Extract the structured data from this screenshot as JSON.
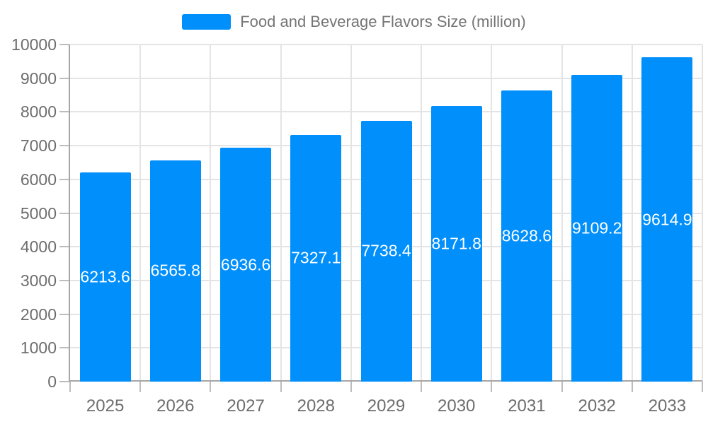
{
  "legend": {
    "items": [
      {
        "label": "Food and Beverage Flavors Size (million)",
        "color": "#008FFB"
      }
    ]
  },
  "chart_data": {
    "type": "bar",
    "title": "Food and Beverage Flavors Size (million)",
    "categories": [
      "2025",
      "2026",
      "2027",
      "2028",
      "2029",
      "2030",
      "2031",
      "2032",
      "2033"
    ],
    "series": [
      {
        "name": "Food and Beverage Flavors Size (million)",
        "values": [
          6213.6,
          6565.8,
          6936.6,
          7327.1,
          7738.4,
          8171.8,
          8628.6,
          9109.2,
          9614.9
        ]
      }
    ],
    "data_labels": [
      "6213.6",
      "6565.8",
      "6936.6",
      "7327.1",
      "7738.4",
      "8171.8",
      "8628.6",
      "9109.2",
      "9614.9"
    ],
    "xlabel": "",
    "ylabel": "",
    "ylim": [
      0,
      10000
    ],
    "ytick_step": 1000,
    "yticks": [
      0,
      1000,
      2000,
      3000,
      4000,
      5000,
      6000,
      7000,
      8000,
      9000,
      10000
    ],
    "grid": true,
    "grid_vertical": true,
    "legend_position": "top",
    "bar_color": "#008FFB",
    "data_label_color": "#ffffff"
  },
  "colors": {
    "bar": "#008FFB",
    "grid": "#e4e4e4",
    "axis": "#a6a6a6",
    "tick": "#bdbdbd",
    "axis_text": "#6d6d6d",
    "legend_text": "#757575",
    "background": "#ffffff"
  }
}
